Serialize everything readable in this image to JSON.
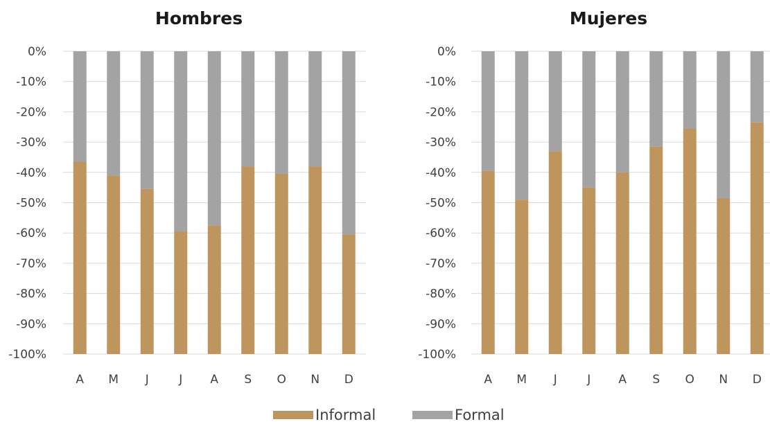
{
  "colors": {
    "informal": "#BF955E",
    "formal": "#A3A3A3",
    "grid": "#D9D9D9"
  },
  "legend": {
    "items": [
      {
        "label": "Informal",
        "color": "#BF955E"
      },
      {
        "label": "Formal",
        "color": "#A3A3A3"
      }
    ]
  },
  "chart_data": [
    {
      "type": "bar",
      "stacked": true,
      "title": "Hombres",
      "categories": [
        "A",
        "M",
        "J",
        "J",
        "A",
        "S",
        "O",
        "N",
        "D"
      ],
      "ylim": [
        -100,
        0
      ],
      "yticks": [
        0,
        -10,
        -20,
        -30,
        -40,
        -50,
        -60,
        -70,
        -80,
        -90,
        -100
      ],
      "ytick_labels": [
        "0%",
        "-10%",
        "-20%",
        "-30%",
        "-40%",
        "-50%",
        "-60%",
        "-70%",
        "-80%",
        "-90%",
        "-100%"
      ],
      "grid": true,
      "series": [
        {
          "name": "Formal",
          "values": [
            -36.5,
            -41,
            -45.5,
            -59.5,
            -57.5,
            -38,
            -40.5,
            -38,
            -60.5
          ]
        },
        {
          "name": "Informal",
          "values": [
            -63.5,
            -59,
            -54.5,
            -40.5,
            -42.5,
            -62,
            -59.5,
            -62,
            -39.5
          ]
        }
      ]
    },
    {
      "type": "bar",
      "stacked": true,
      "title": "Mujeres",
      "categories": [
        "A",
        "M",
        "J",
        "J",
        "A",
        "S",
        "O",
        "N",
        "D"
      ],
      "ylim": [
        -100,
        0
      ],
      "yticks": [
        0,
        -10,
        -20,
        -30,
        -40,
        -50,
        -60,
        -70,
        -80,
        -90,
        -100
      ],
      "ytick_labels": [
        "0%",
        "-10%",
        "-20%",
        "-30%",
        "-40%",
        "-50%",
        "-60%",
        "-70%",
        "-80%",
        "-90%",
        "-100%"
      ],
      "grid": true,
      "series": [
        {
          "name": "Formal",
          "values": [
            -39.5,
            -49,
            -33,
            -45,
            -40,
            -31.5,
            -25.5,
            -48.5,
            -23.5
          ]
        },
        {
          "name": "Informal",
          "values": [
            -60.5,
            -51,
            -67,
            -55,
            -60,
            -68.5,
            -74.5,
            -51.5,
            -76.5
          ]
        }
      ]
    }
  ]
}
